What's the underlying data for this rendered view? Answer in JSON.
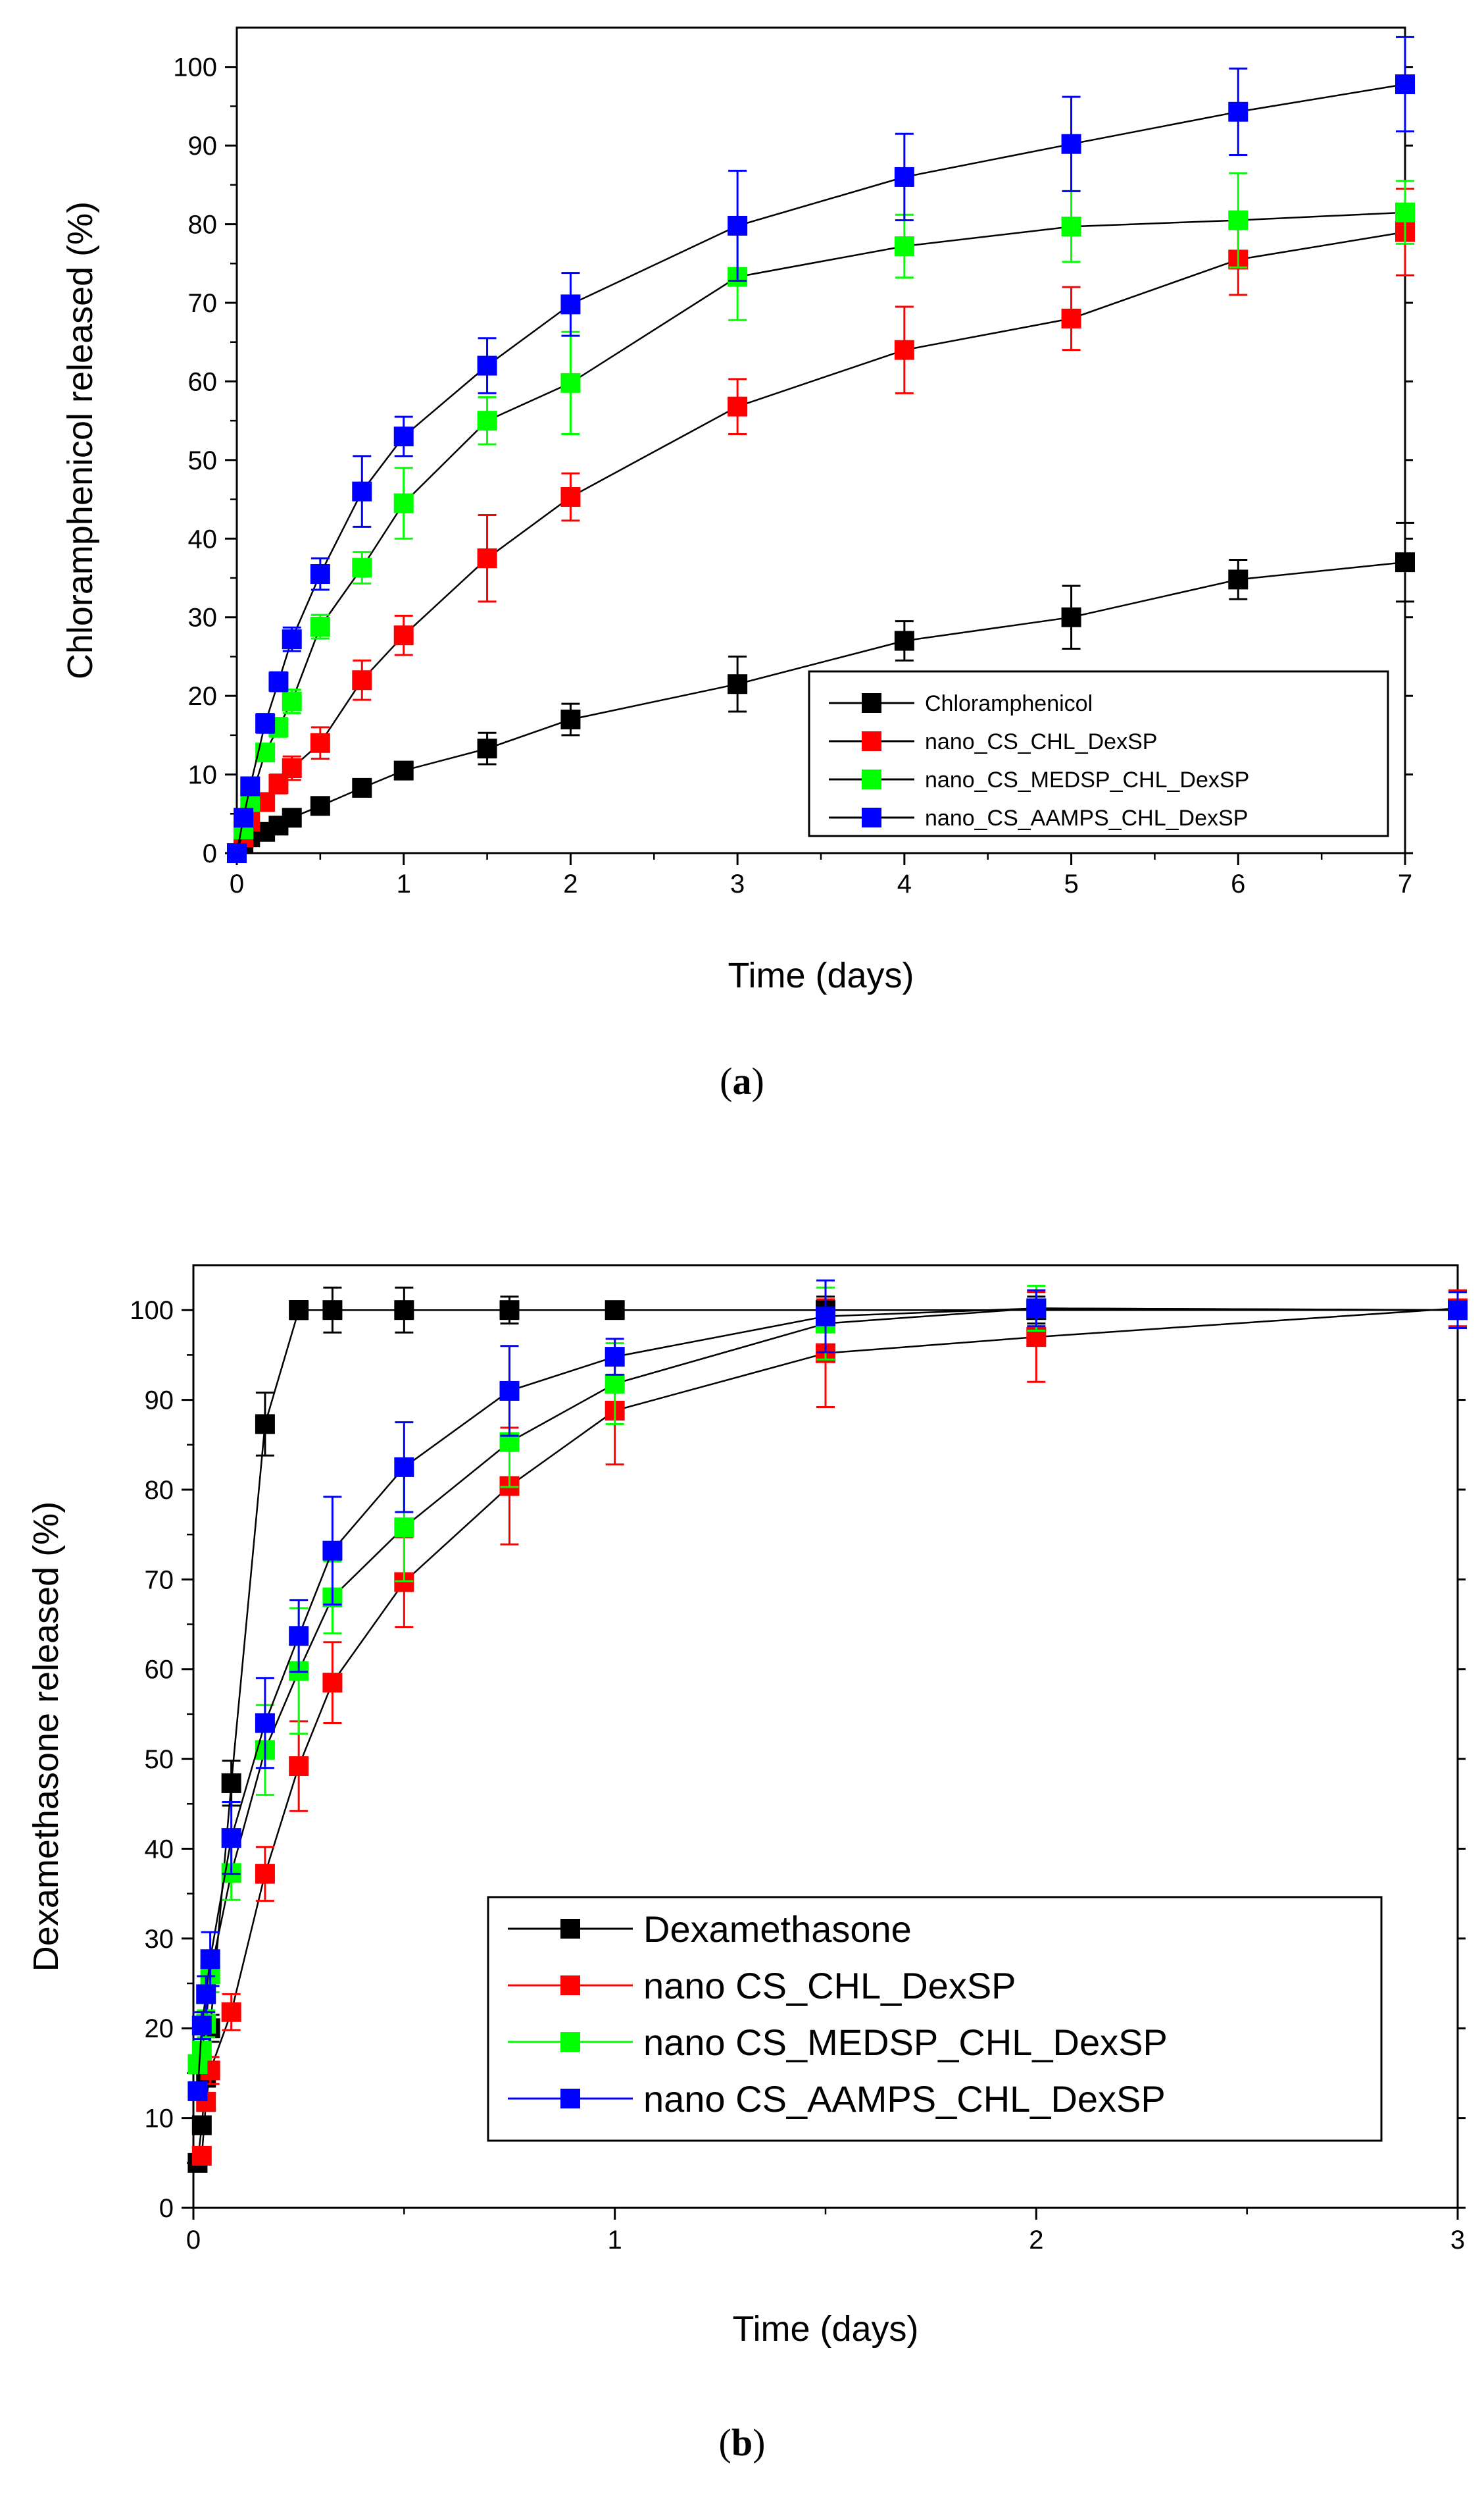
{
  "colors": {
    "black": "#000000",
    "red": "#ff0000",
    "green": "#00ff00",
    "blue": "#0000ff"
  },
  "chart_data": [
    {
      "id": "a",
      "type": "line",
      "caption": "a",
      "title": "",
      "xlabel": "Time (days)",
      "ylabel": "Chloramphenicol released (%)",
      "xlim": [
        0,
        7
      ],
      "ylim": [
        0,
        105
      ],
      "xticks": [
        0,
        1,
        2,
        3,
        4,
        5,
        6,
        7
      ],
      "yticks": [
        0,
        10,
        20,
        30,
        40,
        50,
        60,
        70,
        80,
        90,
        100
      ],
      "grid": false,
      "legend_position": "bottom-right",
      "series": [
        {
          "name": "Chloramphenicol",
          "color": "#000000",
          "x": [
            0,
            0.04,
            0.08,
            0.17,
            0.25,
            0.33,
            0.5,
            0.75,
            1,
            1.5,
            2,
            3,
            4,
            5,
            6,
            7
          ],
          "values": [
            0,
            1.2,
            2,
            2.7,
            3.5,
            4.5,
            6,
            8.3,
            10.5,
            13.3,
            17,
            21.5,
            27,
            30,
            34.8,
            37
          ],
          "errors": [
            0,
            0.5,
            0.5,
            0.5,
            0.5,
            0.6,
            0.8,
            1,
            1,
            2,
            2,
            3.5,
            2.5,
            4,
            2.5,
            5
          ]
        },
        {
          "name": "nano_CS_CHL_DexSP",
          "color": "#ff0000",
          "x": [
            0,
            0.04,
            0.08,
            0.17,
            0.25,
            0.33,
            0.5,
            0.75,
            1,
            1.5,
            2,
            3,
            4,
            5,
            6,
            7
          ],
          "values": [
            0,
            2,
            4,
            6.5,
            8.8,
            10.8,
            14,
            22,
            27.7,
            37.5,
            45.3,
            56.8,
            64,
            68,
            75.5,
            79
          ],
          "errors": [
            0,
            0.5,
            0.8,
            1,
            1.2,
            1.5,
            2,
            2.5,
            2.5,
            5.5,
            3,
            3.5,
            5.5,
            4,
            4.5,
            5.5
          ]
        },
        {
          "name": "nano_CS_MEDSP_CHL_DexSP",
          "color": "#00ff00",
          "x": [
            0,
            0.04,
            0.08,
            0.17,
            0.25,
            0.33,
            0.5,
            0.75,
            1,
            1.5,
            2,
            3,
            4,
            5,
            6,
            7
          ],
          "values": [
            0,
            3,
            6.5,
            12.8,
            16,
            19.3,
            28.8,
            36.3,
            44.5,
            55,
            59.8,
            73.3,
            77.2,
            79.7,
            80.5,
            81.5
          ],
          "errors": [
            0,
            0.5,
            0.8,
            1,
            1.2,
            1.5,
            1.5,
            2,
            4.5,
            3,
            6.5,
            5.5,
            4,
            4.5,
            6,
            4
          ]
        },
        {
          "name": "nano_CS_AAMPS_CHL_DexSP",
          "color": "#0000ff",
          "x": [
            0,
            0.04,
            0.08,
            0.17,
            0.25,
            0.33,
            0.5,
            0.75,
            1,
            1.5,
            2,
            3,
            4,
            5,
            6,
            7
          ],
          "values": [
            0,
            4.5,
            8.5,
            16.5,
            21.8,
            27.2,
            35.5,
            46,
            53,
            62,
            69.8,
            79.8,
            86,
            90.2,
            94.3,
            97.8
          ],
          "errors": [
            0,
            0.5,
            0.8,
            1.2,
            1.2,
            1.5,
            2,
            4.5,
            2.5,
            3.5,
            4,
            7,
            5.5,
            6,
            5.5,
            6
          ]
        }
      ]
    },
    {
      "id": "b",
      "type": "line",
      "caption": "b",
      "title": "",
      "xlabel": "Time (days)",
      "ylabel": "Dexamethasone released (%)",
      "xlim": [
        0,
        3
      ],
      "ylim": [
        0,
        105
      ],
      "xticks": [
        0,
        1,
        2,
        3
      ],
      "yticks": [
        0,
        10,
        20,
        30,
        40,
        50,
        60,
        70,
        80,
        90,
        100
      ],
      "grid": false,
      "legend_position": "bottom-right",
      "series": [
        {
          "name": "Dexamethasone",
          "color": "#000000",
          "x": [
            0.01,
            0.02,
            0.03,
            0.04,
            0.09,
            0.17,
            0.25,
            0.33,
            0.5,
            0.75,
            1,
            1.5,
            2,
            3
          ],
          "values": [
            5,
            9.2,
            14.5,
            20,
            47.3,
            87.3,
            100,
            100,
            100,
            100,
            100,
            100,
            100,
            100
          ],
          "errors": [
            0.5,
            0.8,
            1,
            1.5,
            2.5,
            3.5,
            1,
            2.5,
            2.5,
            1.5,
            0.5,
            1.5,
            1.5,
            2
          ]
        },
        {
          "name": "nano CS_CHL_DexSP",
          "color": "#ff0000",
          "x": [
            0.02,
            0.03,
            0.04,
            0.09,
            0.17,
            0.25,
            0.33,
            0.5,
            0.75,
            1,
            1.5,
            2,
            3
          ],
          "values": [
            5.8,
            11.8,
            15.3,
            21.8,
            37.2,
            49.2,
            58.5,
            69.7,
            80.4,
            88.8,
            95.2,
            97,
            100.2
          ],
          "errors": [
            0.8,
            1,
            1.5,
            2,
            3,
            5,
            4.5,
            5,
            6.5,
            6,
            6,
            5,
            2
          ]
        },
        {
          "name": "nano CS_MEDSP_CHL_DexSP",
          "color": "#00ff00",
          "x": [
            0.01,
            0.02,
            0.03,
            0.04,
            0.09,
            0.17,
            0.25,
            0.33,
            0.5,
            0.75,
            1,
            1.5,
            2,
            3
          ],
          "values": [
            16,
            17.5,
            20.5,
            26,
            37.3,
            51,
            59.8,
            68,
            75.8,
            85.3,
            91.8,
            98.5,
            100.2,
            100
          ],
          "errors": [
            1,
            1,
            1.5,
            2,
            3,
            5,
            7,
            4,
            6,
            5,
            4.5,
            4,
            2.5,
            2
          ]
        },
        {
          "name": "nano CS_AAMPS_CHL_DexSP",
          "color": "#0000ff",
          "x": [
            0.01,
            0.02,
            0.03,
            0.04,
            0.09,
            0.17,
            0.25,
            0.33,
            0.5,
            0.75,
            1,
            1.5,
            2,
            3
          ],
          "values": [
            13,
            20.3,
            23.8,
            27.7,
            41.2,
            54,
            63.7,
            73.2,
            82.5,
            91,
            94.8,
            99.3,
            100.2,
            100
          ],
          "errors": [
            1,
            1.5,
            2,
            3,
            4,
            5,
            4,
            6,
            5,
            5,
            2,
            4,
            2,
            2
          ]
        }
      ]
    }
  ]
}
